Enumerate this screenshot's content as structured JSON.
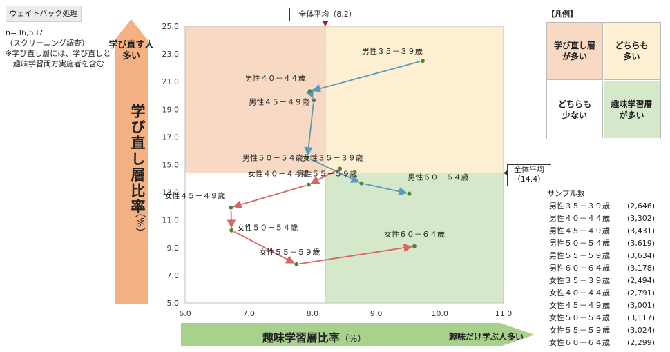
{
  "header": {
    "tag": "ウェイトバック処理",
    "notes": [
      "n=36,537",
      "（スクリーニング調査）",
      "※学び直し層には、学び直しと",
      "　趣味学習両方実施者を含む"
    ]
  },
  "y_axis": {
    "arrow_label_lines": [
      "学び直す人",
      "多い"
    ],
    "title": "学び直し層比率",
    "unit": "（%）"
  },
  "x_axis": {
    "title": "趣味学習層比率",
    "unit": "（%）",
    "arrow_label": "趣味だけ学ぶ人多い"
  },
  "averages": {
    "x_label": "全体平均（8.2）",
    "y_label_lines": [
      "全体平均",
      "（14.4）"
    ]
  },
  "legend": {
    "title": "【凡例】",
    "cells": [
      {
        "lines": [
          "学び直し層",
          "が多い"
        ],
        "color": "#f8d9c4"
      },
      {
        "lines": [
          "どちらも",
          "多い"
        ],
        "color": "#fdf0d2"
      },
      {
        "lines": [
          "どちらも",
          "少ない"
        ],
        "color": "#ffffff"
      },
      {
        "lines": [
          "趣味学習層",
          "が多い"
        ],
        "color": "#d5e8c9"
      }
    ]
  },
  "sample_sizes": {
    "title": "サンプル数",
    "rows": [
      {
        "label": "男性３５－３９歳",
        "n": "(2,646)"
      },
      {
        "label": "男性４０－４４歳",
        "n": "(3,302)"
      },
      {
        "label": "男性４５－４９歳",
        "n": "(3,431)"
      },
      {
        "label": "男性５０－５４歳",
        "n": "(3,619)"
      },
      {
        "label": "男性５５－５９歳",
        "n": "(3,634)"
      },
      {
        "label": "男性６０－６４歳",
        "n": "(3,178)"
      },
      {
        "label": "女性３５－３９歳",
        "n": "(2,494)"
      },
      {
        "label": "女性４０－４４歳",
        "n": "(2,791)"
      },
      {
        "label": "女性４５－４９歳",
        "n": "(3,001)"
      },
      {
        "label": "女性５０－５４歳",
        "n": "(3,117)"
      },
      {
        "label": "女性５５－５９歳",
        "n": "(3,024)"
      },
      {
        "label": "女性６０－６４歳",
        "n": "(2,299)"
      }
    ]
  },
  "chart_data": {
    "type": "scatter",
    "xlim": [
      6.0,
      11.0
    ],
    "ylim": [
      5.0,
      25.0
    ],
    "x_ticks": [
      "6.0",
      "7.0",
      "8.0",
      "9.0",
      "10.0",
      "11.0"
    ],
    "y_ticks": [
      "5.0",
      "7.0",
      "9.0",
      "11.0",
      "13.0",
      "15.0",
      "17.0",
      "19.0",
      "21.0",
      "23.0",
      "25.0"
    ],
    "avg_x": 8.2,
    "avg_y": 14.4,
    "quadrant_colors": {
      "top_left": "#f8d9c4",
      "top_right": "#fdf0d2",
      "bottom_left": "#ffffff",
      "bottom_right": "#d5e8c9"
    },
    "point_color": "#548235",
    "series": [
      {
        "color": "#5b9bbd",
        "points": [
          {
            "label": "男性３５－３９歳",
            "x": 9.73,
            "y": 22.5
          },
          {
            "label": "男性４０－４４歳",
            "x": 7.96,
            "y": 20.3
          },
          {
            "label": "男性４５－４９歳",
            "x": 8.02,
            "y": 19.65
          },
          {
            "label": "男性５０－５４歳",
            "x": 7.92,
            "y": 15.5
          },
          {
            "label": "男性５５－５９歳",
            "x": 8.77,
            "y": 13.65
          },
          {
            "label": "男性６０－６４歳",
            "x": 9.52,
            "y": 12.9
          }
        ]
      },
      {
        "color": "#d96666",
        "points": [
          {
            "label": "女性３５－３９歳",
            "x": 8.43,
            "y": 14.7
          },
          {
            "label": "女性４０－４４歳",
            "x": 7.94,
            "y": 13.55
          },
          {
            "label": "女性４５－４９歳",
            "x": 6.72,
            "y": 11.9
          },
          {
            "label": "女性５０－５４歳",
            "x": 6.73,
            "y": 10.25
          },
          {
            "label": "女性５５－５９歳",
            "x": 7.75,
            "y": 7.8
          },
          {
            "label": "女性６０－６４歳",
            "x": 9.6,
            "y": 9.1
          }
        ]
      }
    ]
  }
}
